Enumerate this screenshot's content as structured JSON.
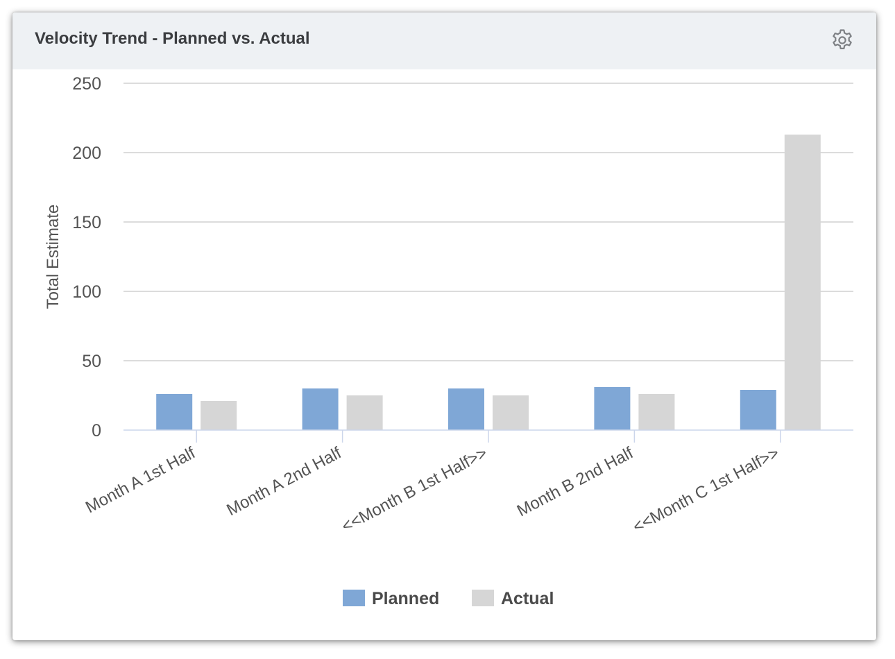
{
  "widget": {
    "title": "Velocity Trend - Planned vs. Actual",
    "settings_icon": "gear-icon"
  },
  "chart_data": {
    "type": "bar",
    "title": "",
    "xlabel": "",
    "ylabel": "Total Estimate",
    "ylim": [
      0,
      250
    ],
    "yticks": [
      0,
      50,
      100,
      150,
      200,
      250
    ],
    "grid": true,
    "legend_position": "bottom",
    "categories": [
      "Month A 1st Half",
      "Month A 2nd Half",
      "<<Month B 1st Half>>",
      "Month B 2nd Half",
      "<<Month C 1st Half>>"
    ],
    "series": [
      {
        "name": "Planned",
        "color": "#7fa7d6",
        "values": [
          26,
          30,
          30,
          31,
          29
        ]
      },
      {
        "name": "Actual",
        "color": "#d6d6d6",
        "values": [
          21,
          25,
          25,
          26,
          213
        ]
      }
    ]
  }
}
